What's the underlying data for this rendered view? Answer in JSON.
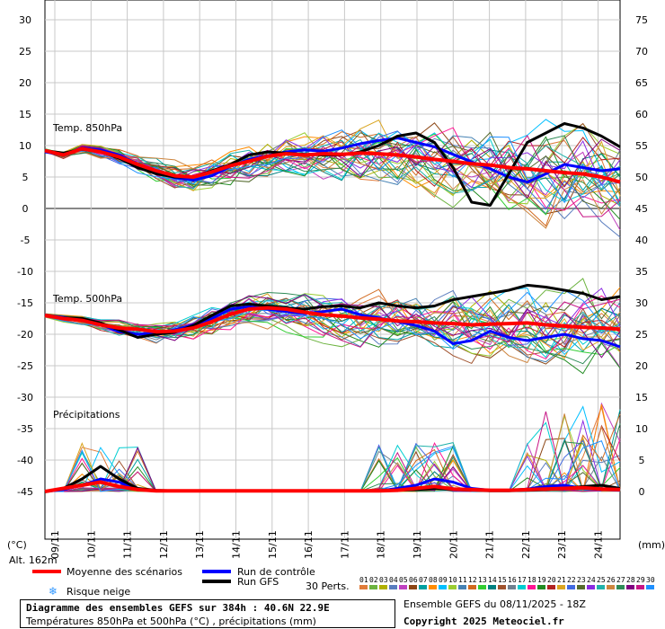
{
  "chart_data": {
    "type": "line",
    "title": "Diagramme des ensembles GEFS sur 384h : 40.6N 22.9E",
    "subtitle": "Températures 850hPa et 500hPa (°C) , précipitations (mm)",
    "left_axis": {
      "label": "(°C)",
      "ticks": [
        30,
        25,
        20,
        15,
        10,
        5,
        0,
        -5,
        -10,
        -15,
        -20,
        -25,
        -30,
        -35,
        -40,
        -45
      ],
      "ylim": [
        -45,
        30
      ]
    },
    "right_axis": {
      "label": "(mm)",
      "ticks": [
        75,
        70,
        65,
        60,
        55,
        50,
        45,
        40,
        35,
        30,
        25,
        20,
        15,
        10,
        5,
        0
      ],
      "ylim": [
        0,
        75
      ]
    },
    "x_ticks": [
      "09/11",
      "10/11",
      "11/11",
      "12/11",
      "13/11",
      "14/11",
      "15/11",
      "16/11",
      "17/11",
      "18/11",
      "19/11",
      "20/11",
      "21/11",
      "22/11",
      "23/11",
      "24/11"
    ],
    "grid": true,
    "sections": [
      "Temp. 850hPa",
      "Temp. 500hPa",
      "Précipitations"
    ],
    "altitude": "Alt. 162m",
    "series": [
      {
        "name": "Moyenne des scénarios",
        "t850": [
          9.2,
          8.5,
          9.5,
          9.0,
          8.2,
          7.0,
          6.0,
          5.2,
          5.0,
          5.8,
          6.8,
          7.5,
          8.3,
          8.7,
          8.5,
          8.7,
          8.6,
          8.8,
          8.7,
          8.5,
          8.2,
          7.8,
          7.5,
          7.1,
          6.9,
          6.5,
          6.3,
          6.0,
          5.7,
          5.5,
          5.0,
          4.2
        ],
        "t500": [
          -17.0,
          -17.5,
          -17.8,
          -18.5,
          -19.0,
          -19.2,
          -19.6,
          -19.5,
          -19.0,
          -18.0,
          -16.8,
          -16.0,
          -15.8,
          -16.0,
          -16.5,
          -16.9,
          -17.1,
          -17.4,
          -17.6,
          -17.9,
          -18.0,
          -18.2,
          -18.3,
          -18.5,
          -18.4,
          -18.3,
          -18.2,
          -18.5,
          -18.7,
          -18.9,
          -19.0,
          -19.2
        ],
        "precip": [
          0,
          0.5,
          1.0,
          1.5,
          0.8,
          0.3,
          0.1,
          0.1,
          0.1,
          0.1,
          0.1,
          0.1,
          0.1,
          0.1,
          0.1,
          0.1,
          0.1,
          0.1,
          0.1,
          0.2,
          0.5,
          0.8,
          0.4,
          0.3,
          0.2,
          0.2,
          0.3,
          0.4,
          0.5,
          0.6,
          0.4,
          0.3
        ]
      },
      {
        "name": "Run de contrôle",
        "t850": [
          9.0,
          8.5,
          9.6,
          9.3,
          8.5,
          7.1,
          5.8,
          4.9,
          4.5,
          5.2,
          6.7,
          7.8,
          8.4,
          9.0,
          9.3,
          9.1,
          9.6,
          10.3,
          10.8,
          11.2,
          10.5,
          9.8,
          8.6,
          7.4,
          6.3,
          5.0,
          4.2,
          5.5,
          7.0,
          6.5,
          6.0,
          6.3
        ],
        "t500": [
          -17.0,
          -17.3,
          -17.8,
          -18.4,
          -19.6,
          -20.0,
          -19.8,
          -19.3,
          -18.5,
          -17.5,
          -16.0,
          -15.6,
          -16.0,
          -16.4,
          -16.7,
          -16.4,
          -16.0,
          -16.9,
          -17.4,
          -18.0,
          -18.6,
          -19.5,
          -21.5,
          -21.0,
          -19.5,
          -20.5,
          -21.0,
          -20.5,
          -20.0,
          -20.7,
          -21.0,
          -22.0
        ],
        "precip": [
          0,
          0.3,
          1.0,
          2.0,
          1.5,
          0.3,
          0.1,
          0.1,
          0.1,
          0.1,
          0.1,
          0.1,
          0.1,
          0.1,
          0.1,
          0.1,
          0.1,
          0.1,
          0.1,
          0.5,
          1.0,
          2.0,
          1.5,
          0.5,
          0.2,
          0.2,
          0.4,
          0.8,
          1.0,
          0.5,
          0.3,
          0.2
        ]
      },
      {
        "name": "Run GFS",
        "t850": [
          9.2,
          8.8,
          9.4,
          9.0,
          8.0,
          6.5,
          5.5,
          5.0,
          5.0,
          6.0,
          7.0,
          8.5,
          9.0,
          8.8,
          8.6,
          8.5,
          8.5,
          9.0,
          10.0,
          11.5,
          12.0,
          10.5,
          6.5,
          1.0,
          0.5,
          5.5,
          10.5,
          12.0,
          13.5,
          12.8,
          11.5,
          9.8
        ],
        "t500": [
          -17.0,
          -17.4,
          -17.5,
          -18.2,
          -19.3,
          -20.5,
          -20.0,
          -19.7,
          -18.6,
          -17.0,
          -15.5,
          -15.2,
          -15.5,
          -15.8,
          -16.0,
          -15.6,
          -15.5,
          -15.8,
          -15.0,
          -15.5,
          -15.8,
          -15.5,
          -14.5,
          -14.0,
          -13.5,
          -13.0,
          -12.2,
          -12.5,
          -13.0,
          -13.5,
          -14.5,
          -14.0
        ],
        "precip": [
          0,
          0.5,
          2.0,
          4.0,
          2.0,
          0.5,
          0.2,
          0.1,
          0.1,
          0.1,
          0.1,
          0.1,
          0.1,
          0.1,
          0.1,
          0.1,
          0.1,
          0.1,
          0.1,
          0.2,
          0.3,
          0.5,
          0.3,
          0.2,
          0.1,
          0.1,
          0.2,
          0.3,
          0.5,
          0.8,
          1.0,
          0.5
        ]
      }
    ]
  },
  "legend": {
    "mean_label": "Moyenne des scénarios",
    "control_label": "Run de contrôle",
    "gfs_label": "Run GFS",
    "snow_label": "Risque neige",
    "perts_label": "30 Perts.",
    "mean_color": "#ff0000",
    "control_color": "#0000ff",
    "gfs_color": "#000000",
    "pert_ids": [
      "01",
      "02",
      "03",
      "04",
      "05",
      "06",
      "07",
      "08",
      "09",
      "10",
      "11",
      "12",
      "13",
      "14",
      "15",
      "16",
      "17",
      "18",
      "19",
      "20",
      "21",
      "22",
      "23",
      "24",
      "25",
      "26",
      "27",
      "28",
      "29",
      "30"
    ],
    "pert_colors": [
      "#e07b39",
      "#6cb33f",
      "#b0b000",
      "#5a7dbf",
      "#c040c0",
      "#8b4513",
      "#00a0a0",
      "#ff8c00",
      "#00bfff",
      "#9acd32",
      "#4682b4",
      "#d2691e",
      "#32cd32",
      "#008080",
      "#a0522d",
      "#708090",
      "#00ced1",
      "#ff1493",
      "#228b22",
      "#b22222",
      "#daa520",
      "#4169e1",
      "#556b2f",
      "#8a2be2",
      "#20b2aa",
      "#cd853f",
      "#2e8b57",
      "#800080",
      "#c71585",
      "#1e90ff"
    ]
  },
  "footer": {
    "ensemble_label": "Ensemble GEFS du 08/11/2025 - 18Z",
    "copyright": "Copyright 2025 Meteociel.fr"
  }
}
